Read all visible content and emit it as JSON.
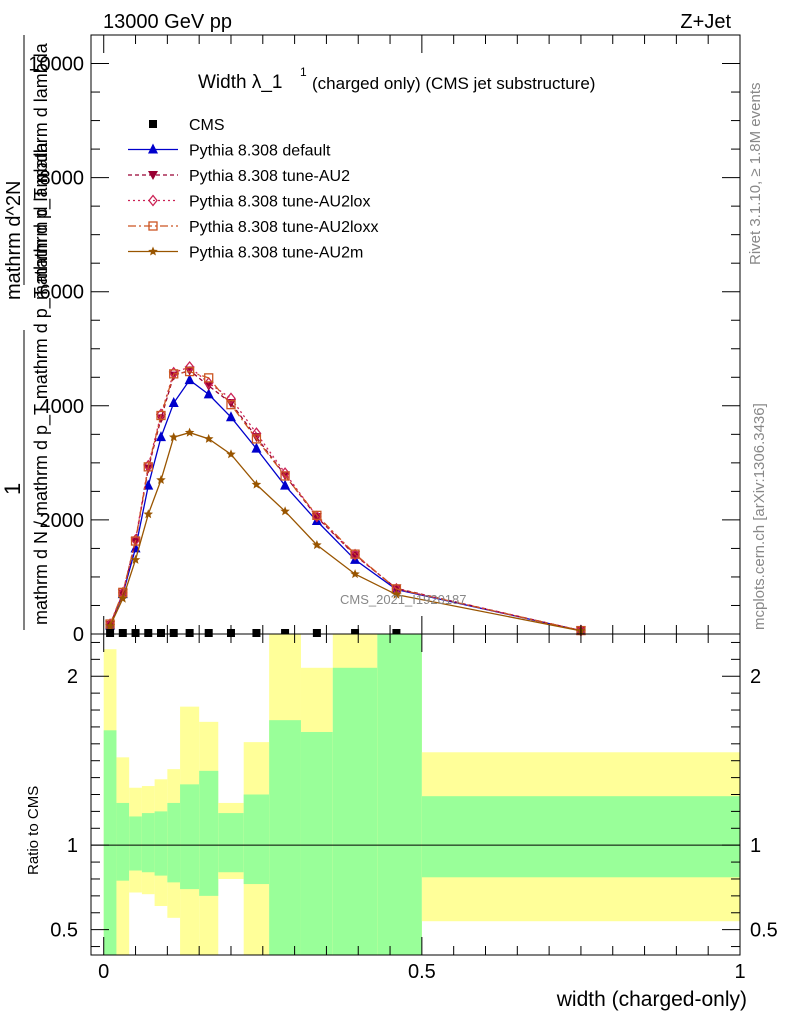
{
  "header": {
    "left": "13000 GeV pp",
    "right": "Z+Jet"
  },
  "side_labels": {
    "rivet": "Rivet 3.1.10, ≥ 1.8M events",
    "mcplots": "mcplots.cern.ch [arXiv:1306.3436]"
  },
  "watermark": "CMS_2021_I1920187",
  "chart_data": [
    {
      "type": "line",
      "title": "Width λ_1^1 (charged only) (CMS jet substructure)",
      "title_parts": {
        "main": "Width λ_1",
        "sup": "1",
        "rest": "(charged only) (CMS jet substructure)"
      },
      "ylabel_parts": {
        "numer_one": "1",
        "denom": "mathrm d N / mathrm d p_T mathrm d p_T mathrm d lambda",
        "numer": "mathrm d^2N",
        "denom2": "mathrm d p_T mathrm d lambda"
      },
      "xlim": [
        -0.02,
        1.0
      ],
      "ylim": [
        0,
        10500
      ],
      "yticks": [
        0,
        2000,
        4000,
        6000,
        8000,
        10000
      ],
      "ytick_labels": [
        "0",
        "2000",
        "4000",
        "6000",
        "8000",
        "10000"
      ],
      "cms_points": {
        "name": "CMS",
        "x": [
          0.01,
          0.03,
          0.05,
          0.07,
          0.09,
          0.11,
          0.135,
          0.165,
          0.2,
          0.24,
          0.285,
          0.335,
          0.395,
          0.46
        ],
        "y": [
          0,
          0,
          0,
          0,
          0,
          0,
          0,
          0,
          0,
          0,
          0,
          0,
          0,
          0
        ]
      },
      "x": [
        0.01,
        0.03,
        0.05,
        0.07,
        0.09,
        0.11,
        0.135,
        0.165,
        0.2,
        0.24,
        0.285,
        0.335,
        0.395,
        0.46,
        0.75
      ],
      "series": [
        {
          "name": "Pythia 8.308 default",
          "color": "#0000cc",
          "marker": "triangle-up",
          "dash": "",
          "values": [
            150,
            700,
            1500,
            2600,
            3450,
            4050,
            4450,
            4200,
            3800,
            3250,
            2600,
            1980,
            1300,
            780,
            60
          ]
        },
        {
          "name": "Pythia 8.308 tune-AU2",
          "color": "#990033",
          "marker": "triangle-down",
          "dash": "4,3",
          "values": [
            160,
            710,
            1620,
            2900,
            3780,
            4530,
            4620,
            4350,
            4050,
            3450,
            2780,
            2050,
            1380,
            800,
            60
          ]
        },
        {
          "name": "Pythia 8.308 tune-AU2lox",
          "color": "#cc2255",
          "marker": "diamond",
          "dash": "2,3",
          "values": [
            170,
            720,
            1650,
            2950,
            3850,
            4580,
            4680,
            4400,
            4130,
            3520,
            2820,
            2060,
            1390,
            790,
            60
          ]
        },
        {
          "name": "Pythia 8.308 tune-AU2loxx",
          "color": "#cc5522",
          "marker": "square",
          "dash": "8,3,2,3",
          "values": [
            175,
            730,
            1630,
            2930,
            3830,
            4560,
            4600,
            4490,
            4020,
            3420,
            2770,
            2080,
            1400,
            790,
            60
          ]
        },
        {
          "name": "Pythia 8.308 tune-AU2m",
          "color": "#995500",
          "marker": "star",
          "dash": "",
          "values": [
            140,
            620,
            1300,
            2100,
            2700,
            3450,
            3530,
            3420,
            3150,
            2620,
            2150,
            1560,
            1050,
            690,
            55
          ]
        }
      ],
      "legend_position": "top-left"
    },
    {
      "type": "area",
      "ylabel": "Ratio to CMS",
      "xlabel": "width (charged-only)",
      "xlim": [
        -0.02,
        1.0
      ],
      "ylim": [
        0.35,
        2.25
      ],
      "xticks": [
        0,
        0.5,
        1
      ],
      "xtick_labels": [
        "0",
        "0.5",
        "1"
      ],
      "yticks": [
        0.5,
        1,
        2
      ],
      "ytick_labels": [
        "0.5",
        "1",
        "2"
      ],
      "reference": 1,
      "bins": [
        {
          "x0": 0.0,
          "x1": 0.02,
          "y1_lo": 0.0,
          "y1_hi": 1.68,
          "y2_lo": 0.0,
          "y2_hi": 2.16
        },
        {
          "x0": 0.02,
          "x1": 0.04,
          "y1_lo": 0.79,
          "y1_hi": 1.25,
          "y2_lo": 0.0,
          "y2_hi": 1.52
        },
        {
          "x0": 0.04,
          "x1": 0.06,
          "y1_lo": 0.85,
          "y1_hi": 1.17,
          "y2_lo": 0.72,
          "y2_hi": 1.34
        },
        {
          "x0": 0.06,
          "x1": 0.08,
          "y1_lo": 0.84,
          "y1_hi": 1.19,
          "y2_lo": 0.71,
          "y2_hi": 1.35
        },
        {
          "x0": 0.08,
          "x1": 0.1,
          "y1_lo": 0.82,
          "y1_hi": 1.2,
          "y2_lo": 0.64,
          "y2_hi": 1.39
        },
        {
          "x0": 0.1,
          "x1": 0.12,
          "y1_lo": 0.78,
          "y1_hi": 1.25,
          "y2_lo": 0.57,
          "y2_hi": 1.45
        },
        {
          "x0": 0.12,
          "x1": 0.15,
          "y1_lo": 0.74,
          "y1_hi": 1.36,
          "y2_lo": 0.0,
          "y2_hi": 1.82
        },
        {
          "x0": 0.15,
          "x1": 0.18,
          "y1_lo": 0.7,
          "y1_hi": 1.44,
          "y2_lo": 0.0,
          "y2_hi": 1.73
        },
        {
          "x0": 0.18,
          "x1": 0.22,
          "y1_lo": 0.84,
          "y1_hi": 1.19,
          "y2_lo": 0.8,
          "y2_hi": 1.25
        },
        {
          "x0": 0.22,
          "x1": 0.26,
          "y1_lo": 0.77,
          "y1_hi": 1.3,
          "y2_lo": 0.0,
          "y2_hi": 1.61
        },
        {
          "x0": 0.26,
          "x1": 0.31,
          "y1_lo": 0.0,
          "y1_hi": 1.74,
          "y2_lo": 0.0,
          "y2_hi": 2.25
        },
        {
          "x0": 0.31,
          "x1": 0.36,
          "y1_lo": 0.0,
          "y1_hi": 1.67,
          "y2_lo": 0.0,
          "y2_hi": 2.05
        },
        {
          "x0": 0.36,
          "x1": 0.43,
          "y1_lo": 0.0,
          "y1_hi": 2.05,
          "y2_lo": 0.0,
          "y2_hi": 2.25
        },
        {
          "x0": 0.43,
          "x1": 0.5,
          "y1_lo": 0.0,
          "y1_hi": 2.25,
          "y2_lo": 0.0,
          "y2_hi": 2.25
        },
        {
          "x0": 0.5,
          "x1": 1.0,
          "y1_lo": 0.81,
          "y1_hi": 1.29,
          "y2_lo": 0.55,
          "y2_hi": 1.55
        }
      ],
      "band_colors": {
        "inner": "#99ff99",
        "outer": "#ffff99"
      }
    }
  ]
}
